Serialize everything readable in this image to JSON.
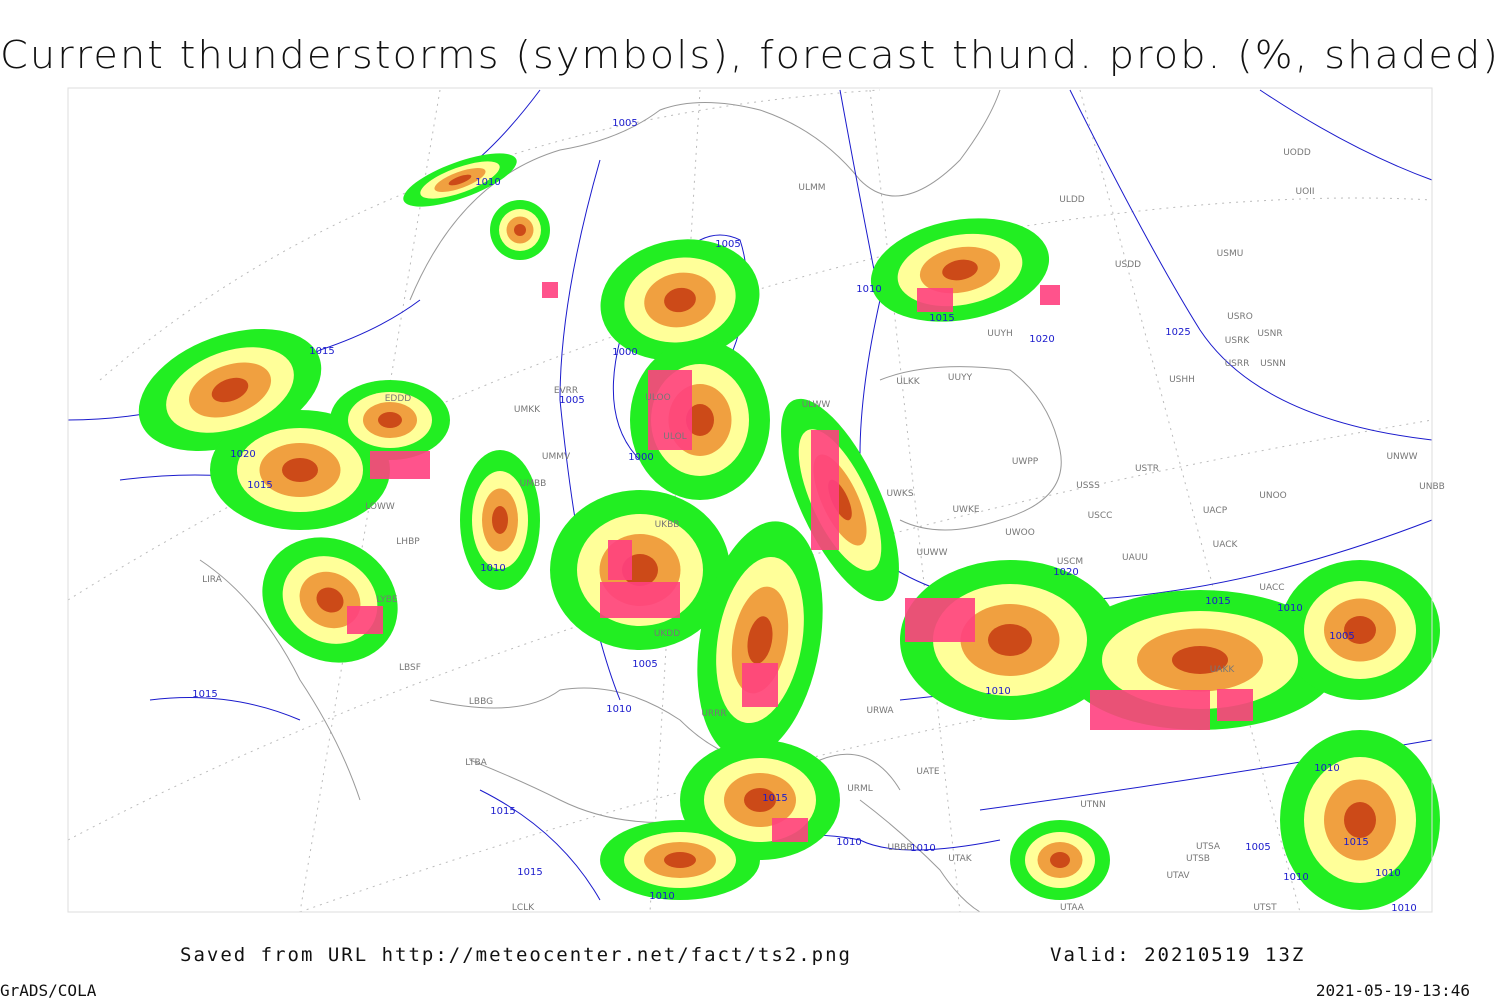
{
  "title": "Current thunderstorms (symbols), forecast thund. prob. (%, shaded)",
  "footer": {
    "source": "Saved from URL http://meteocenter.net/fact/ts2.png",
    "valid": "Valid: 20210519 13Z",
    "software": "GrADS/COLA",
    "timestamp": "2021-05-19-13:46"
  },
  "map": {
    "isobar_labels": [
      "1005",
      "1010",
      "1005",
      "1010",
      "1015",
      "1020",
      "1025",
      "1015",
      "1000",
      "1005",
      "1020",
      "1000",
      "1015",
      "1010",
      "1020",
      "1015",
      "1010",
      "1005",
      "1005",
      "1010",
      "1015",
      "1010",
      "1010",
      "1015",
      "1015",
      "1010",
      "1010",
      "1005",
      "1015",
      "1015",
      "1010",
      "1010",
      "1010",
      "1010"
    ],
    "station_labels": [
      "ULMM",
      "ULDD",
      "UODD",
      "UOII",
      "USDD",
      "USMU",
      "USRO",
      "USRK",
      "USNR",
      "USRR",
      "USNN",
      "USHH",
      "UUYH",
      "ULKK",
      "UUYY",
      "ULWW",
      "EDDD",
      "UMKK",
      "EVRR",
      "ULOO",
      "ULOL",
      "UMMV",
      "UMBB",
      "UUWW",
      "UWPP",
      "USSS",
      "USTR",
      "UWKS",
      "UWKE",
      "UWOO",
      "USCC",
      "UACP",
      "UNOO",
      "UNWW",
      "UNBB",
      "UACK",
      "USCM",
      "UAUU",
      "UACC",
      "LOWW",
      "LHBP",
      "LIRA",
      "LYBE",
      "LBSF",
      "LBBG",
      "LTBA",
      "UKBB",
      "UKDD",
      "URRR",
      "URWA",
      "UATE",
      "URML",
      "UTNN",
      "UTAK",
      "UTSA",
      "UTSB",
      "UTAV",
      "UTST",
      "UTAA",
      "LCLK",
      "UBBB",
      "UAKK"
    ]
  }
}
